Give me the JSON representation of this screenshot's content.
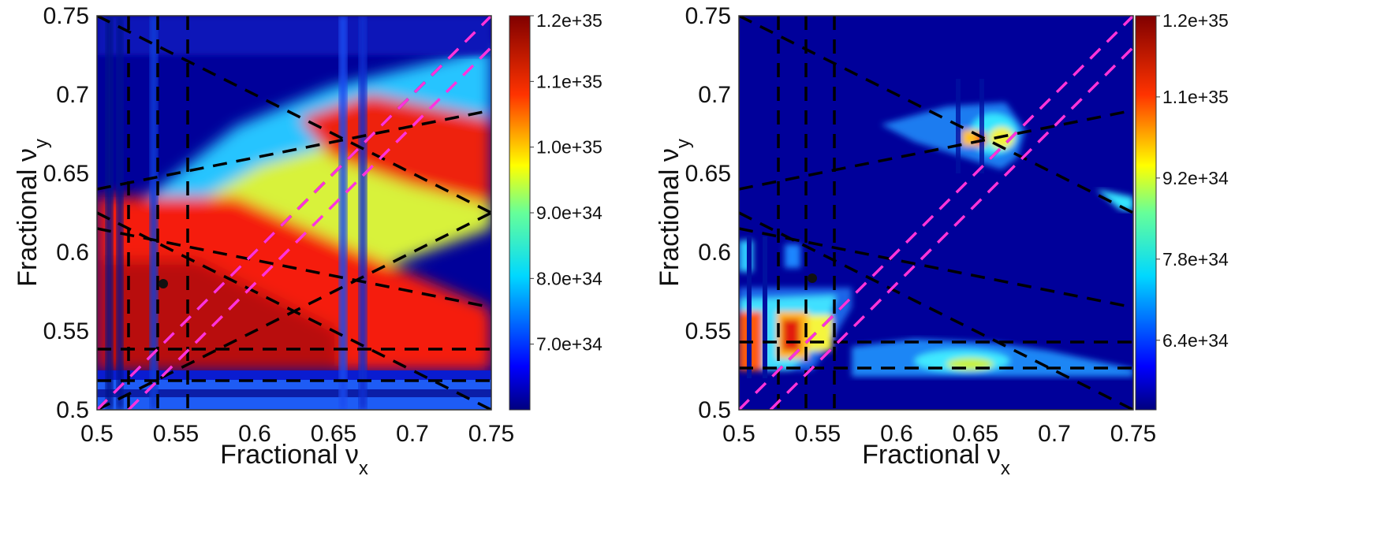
{
  "chart_data": [
    {
      "type": "heatmap",
      "panel": "left",
      "xlabel": "Fractional ν",
      "xlabel_sub": "x",
      "ylabel": "Fractional ν",
      "ylabel_sub": "y",
      "xlim": [
        0.5,
        0.75
      ],
      "ylim": [
        0.5,
        0.75
      ],
      "x_ticks": [
        "0.5",
        "0.55",
        "0.6",
        "0.65",
        "0.7",
        "0.75"
      ],
      "y_ticks": [
        "0.5",
        "0.55",
        "0.6",
        "0.65",
        "0.7",
        "0.75"
      ],
      "colorbar_range": [
        6e+34,
        1.2e+35
      ],
      "colorbar_ticks": [
        "1.2e+35",
        "1.1e+35",
        "1.0e+35",
        "9.0e+34",
        "8.0e+34",
        "7.0e+34"
      ],
      "colorbar_tick_values": [
        1.2e+35,
        1.1e+35,
        1e+35,
        9e+34,
        8e+34,
        7e+34
      ],
      "colormap": "jet",
      "working_point": [
        0.54,
        0.58
      ]
    },
    {
      "type": "heatmap",
      "panel": "right",
      "xlabel": "Fractional ν",
      "xlabel_sub": "x",
      "ylabel": "Fractional ν",
      "ylabel_sub": "y",
      "xlim": [
        0.5,
        0.75
      ],
      "ylim": [
        0.5,
        0.75
      ],
      "x_ticks": [
        "0.5",
        "0.55",
        "0.6",
        "0.65",
        "0.7",
        "0.75"
      ],
      "y_ticks": [
        "0.5",
        "0.55",
        "0.6",
        "0.65",
        "0.7",
        "0.75"
      ],
      "colorbar_range": [
        5.2e+34,
        1.2e+35
      ],
      "colorbar_ticks": [
        "1.2e+35",
        "1.1e+35",
        "9.2e+34",
        "7.8e+34",
        "6.4e+34"
      ],
      "colorbar_tick_values": [
        1.2e+35,
        1.06e+35,
        9.2e+34,
        7.8e+34,
        6.4e+34
      ],
      "colormap": "jet",
      "working_point": [
        0.54,
        0.58
      ]
    }
  ]
}
